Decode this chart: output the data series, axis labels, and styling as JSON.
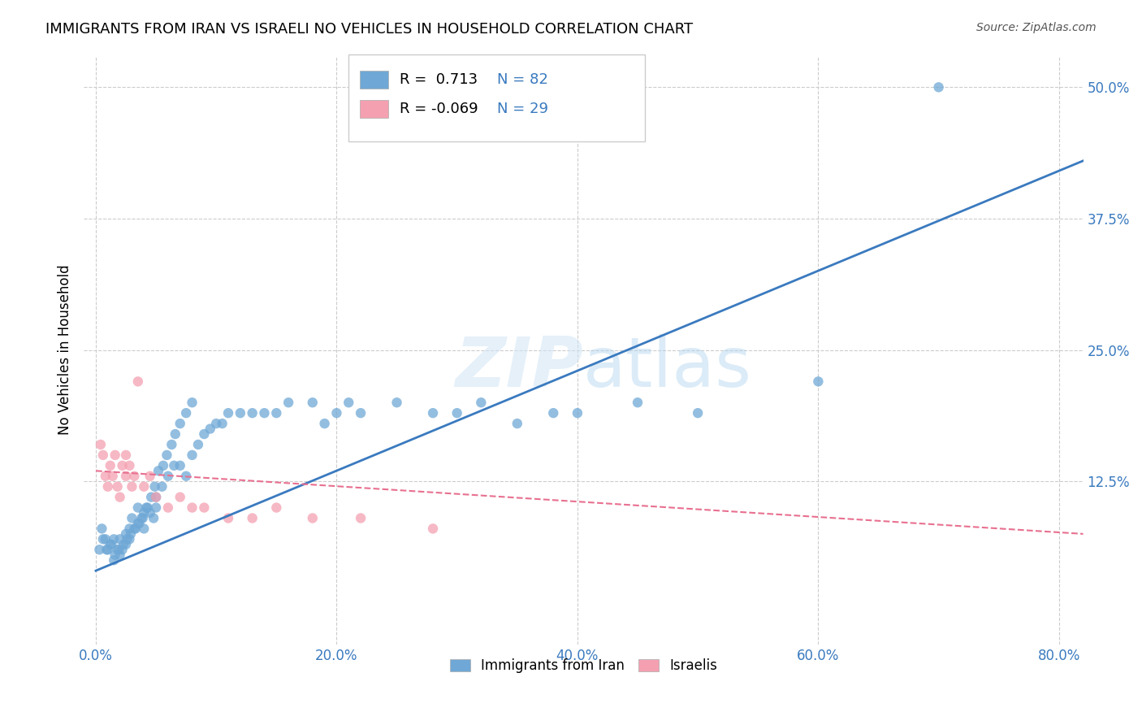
{
  "title": "IMMIGRANTS FROM IRAN VS ISRAELI NO VEHICLES IN HOUSEHOLD CORRELATION CHART",
  "source": "Source: ZipAtlas.com",
  "xlabel_ticks": [
    "0.0%",
    "20.0%",
    "40.0%",
    "60.0%",
    "80.0%"
  ],
  "ylabel_ticks": [
    "12.5%",
    "25.0%",
    "37.5%",
    "50.0%"
  ],
  "xlabel_vals": [
    0.0,
    0.2,
    0.4,
    0.6,
    0.8
  ],
  "ylabel_vals": [
    0.125,
    0.25,
    0.375,
    0.5
  ],
  "xlim": [
    -0.01,
    0.82
  ],
  "ylim": [
    -0.03,
    0.53
  ],
  "ylabel": "No Vehicles in Household",
  "legend_label1": "Immigrants from Iran",
  "legend_label2": "Israelis",
  "R1": "0.713",
  "N1": "82",
  "R2": "-0.069",
  "N2": "29",
  "blue_color": "#6fa8d6",
  "pink_color": "#f4a0b0",
  "blue_line_color": "#3a7abf",
  "pink_line_color": "#e87090",
  "watermark": "ZIPatlas",
  "blue_scatter_x": [
    0.005,
    0.008,
    0.01,
    0.012,
    0.015,
    0.015,
    0.018,
    0.02,
    0.02,
    0.022,
    0.025,
    0.025,
    0.028,
    0.028,
    0.03,
    0.032,
    0.035,
    0.035,
    0.038,
    0.04,
    0.04,
    0.042,
    0.045,
    0.048,
    0.05,
    0.05,
    0.055,
    0.06,
    0.065,
    0.07,
    0.075,
    0.08,
    0.085,
    0.09,
    0.095,
    0.1,
    0.105,
    0.11,
    0.12,
    0.13,
    0.14,
    0.15,
    0.16,
    0.18,
    0.19,
    0.2,
    0.21,
    0.22,
    0.25,
    0.28,
    0.3,
    0.32,
    0.35,
    0.38,
    0.4,
    0.45,
    0.5,
    0.6,
    0.7,
    0.003,
    0.006,
    0.009,
    0.013,
    0.016,
    0.019,
    0.023,
    0.026,
    0.029,
    0.033,
    0.036,
    0.039,
    0.043,
    0.046,
    0.049,
    0.052,
    0.056,
    0.059,
    0.063,
    0.066,
    0.07,
    0.075,
    0.08
  ],
  "blue_scatter_y": [
    0.08,
    0.07,
    0.06,
    0.065,
    0.05,
    0.07,
    0.06,
    0.055,
    0.07,
    0.06,
    0.075,
    0.065,
    0.07,
    0.08,
    0.09,
    0.08,
    0.1,
    0.085,
    0.09,
    0.095,
    0.08,
    0.1,
    0.095,
    0.09,
    0.11,
    0.1,
    0.12,
    0.13,
    0.14,
    0.14,
    0.13,
    0.15,
    0.16,
    0.17,
    0.175,
    0.18,
    0.18,
    0.19,
    0.19,
    0.19,
    0.19,
    0.19,
    0.2,
    0.2,
    0.18,
    0.19,
    0.2,
    0.19,
    0.2,
    0.19,
    0.19,
    0.2,
    0.18,
    0.19,
    0.19,
    0.2,
    0.19,
    0.22,
    0.5,
    0.06,
    0.07,
    0.06,
    0.065,
    0.055,
    0.06,
    0.065,
    0.07,
    0.075,
    0.08,
    0.085,
    0.09,
    0.1,
    0.11,
    0.12,
    0.135,
    0.14,
    0.15,
    0.16,
    0.17,
    0.18,
    0.19,
    0.2
  ],
  "pink_scatter_x": [
    0.004,
    0.006,
    0.008,
    0.01,
    0.012,
    0.014,
    0.016,
    0.018,
    0.02,
    0.022,
    0.025,
    0.025,
    0.028,
    0.03,
    0.032,
    0.035,
    0.04,
    0.045,
    0.05,
    0.06,
    0.07,
    0.08,
    0.09,
    0.11,
    0.13,
    0.15,
    0.18,
    0.22,
    0.28
  ],
  "pink_scatter_y": [
    0.16,
    0.15,
    0.13,
    0.12,
    0.14,
    0.13,
    0.15,
    0.12,
    0.11,
    0.14,
    0.13,
    0.15,
    0.14,
    0.12,
    0.13,
    0.22,
    0.12,
    0.13,
    0.11,
    0.1,
    0.11,
    0.1,
    0.1,
    0.09,
    0.09,
    0.1,
    0.09,
    0.09,
    0.08
  ],
  "blue_line_x": [
    0.0,
    0.82
  ],
  "blue_line_y": [
    0.04,
    0.43
  ],
  "pink_line_x": [
    0.0,
    0.82
  ],
  "pink_line_y": [
    0.135,
    0.075
  ]
}
